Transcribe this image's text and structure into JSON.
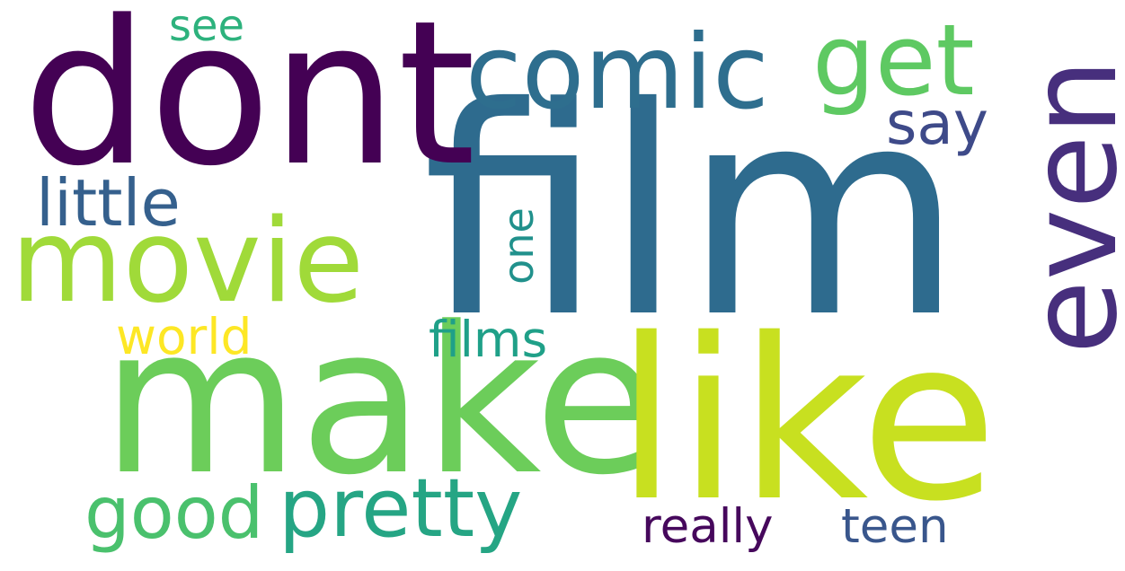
{
  "words": [
    {
      "key": "film",
      "text": "film",
      "color": "#2e6b8e"
    },
    {
      "key": "dont",
      "text": "dont",
      "color": "#440154"
    },
    {
      "key": "make",
      "text": "make",
      "color": "#6ccd5a"
    },
    {
      "key": "like",
      "text": "like",
      "color": "#c8e020"
    },
    {
      "key": "movie",
      "text": "movie",
      "color": "#a0da39"
    },
    {
      "key": "even",
      "text": "even",
      "color": "#472f7d"
    },
    {
      "key": "comic",
      "text": "comic",
      "color": "#2e6e8e"
    },
    {
      "key": "get",
      "text": "get",
      "color": "#5ec962"
    },
    {
      "key": "pretty",
      "text": "pretty",
      "color": "#25a584"
    },
    {
      "key": "good",
      "text": "good",
      "color": "#4ac16d"
    },
    {
      "key": "little",
      "text": "little",
      "color": "#35608d"
    },
    {
      "key": "say",
      "text": "say",
      "color": "#3e4a89"
    },
    {
      "key": "one",
      "text": "one",
      "color": "#21918c"
    },
    {
      "key": "world",
      "text": "world",
      "color": "#fde725"
    },
    {
      "key": "films",
      "text": "films",
      "color": "#1fa088"
    },
    {
      "key": "really",
      "text": "really",
      "color": "#46085c"
    },
    {
      "key": "teen",
      "text": "teen",
      "color": "#39568c"
    },
    {
      "key": "see",
      "text": "see",
      "color": "#2db27d"
    }
  ]
}
